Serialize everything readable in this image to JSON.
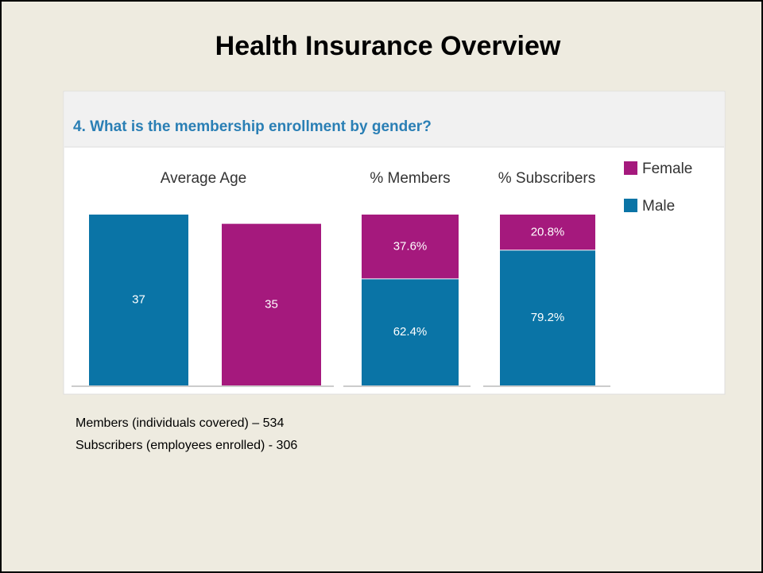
{
  "title": "Health Insurance Overview",
  "question": "4. What is the membership enrollment by gender?",
  "chart_data": [
    {
      "type": "bar",
      "title": "Average Age",
      "ylim": [
        0,
        37
      ],
      "series": [
        {
          "name": "Male",
          "color": "#0a74a6",
          "values": [
            37
          ]
        },
        {
          "name": "Female",
          "color": "#a5197d",
          "values": [
            35
          ]
        }
      ]
    },
    {
      "type": "stacked_bar",
      "title": "% Members",
      "ylim": [
        0,
        100
      ],
      "series": [
        {
          "name": "Male",
          "color": "#0a74a6",
          "values": [
            62.4
          ],
          "value_labels": [
            "62.4%"
          ]
        },
        {
          "name": "Female",
          "color": "#a5197d",
          "values": [
            37.6
          ],
          "value_labels": [
            "37.6%"
          ]
        }
      ]
    },
    {
      "type": "stacked_bar",
      "title": "% Subscribers",
      "ylim": [
        0,
        100
      ],
      "series": [
        {
          "name": "Male",
          "color": "#0a74a6",
          "values": [
            79.2
          ],
          "value_labels": [
            "79.2%"
          ]
        },
        {
          "name": "Female",
          "color": "#a5197d",
          "values": [
            20.8
          ],
          "value_labels": [
            "20.8%"
          ]
        }
      ]
    }
  ],
  "notes": [
    "Members (individuals covered) – 534",
    "Subscribers (employees enrolled) - 306"
  ]
}
